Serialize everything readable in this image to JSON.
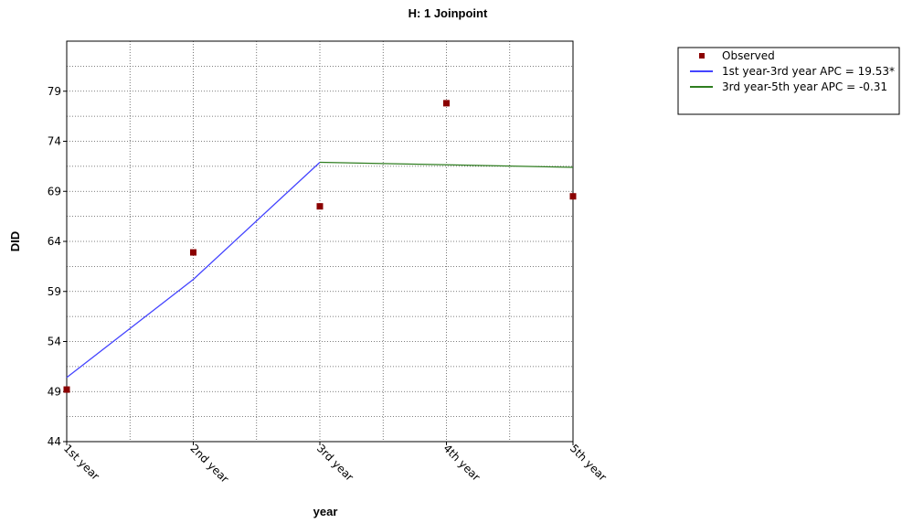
{
  "chart_data": {
    "type": "line",
    "title": "H: 1 Joinpoint",
    "xlabel": "year",
    "ylabel": "DID",
    "categories": [
      "1st year",
      "2nd year",
      "3rd year",
      "4th year",
      "5th year"
    ],
    "ylim": [
      44,
      84
    ],
    "yticks": [
      44,
      49,
      54,
      59,
      64,
      69,
      74,
      79
    ],
    "grid": true,
    "legend_position": "top-right",
    "series": [
      {
        "name": "Observed",
        "kind": "scatter",
        "color": "#8B0000",
        "x": [
          1,
          2,
          3,
          4,
          5
        ],
        "y": [
          49.2,
          62.9,
          67.5,
          77.8,
          68.5
        ]
      },
      {
        "name": "1st year-3rd year APC  = 19.53*",
        "kind": "line",
        "color": "#4444ff",
        "x": [
          1,
          2,
          3
        ],
        "y": [
          50.4,
          60.2,
          71.9
        ]
      },
      {
        "name": "3rd year-5th year APC  = -0.31",
        "kind": "line",
        "color": "#2e7d1f",
        "x": [
          3,
          5
        ],
        "y": [
          71.9,
          71.4
        ]
      }
    ]
  }
}
